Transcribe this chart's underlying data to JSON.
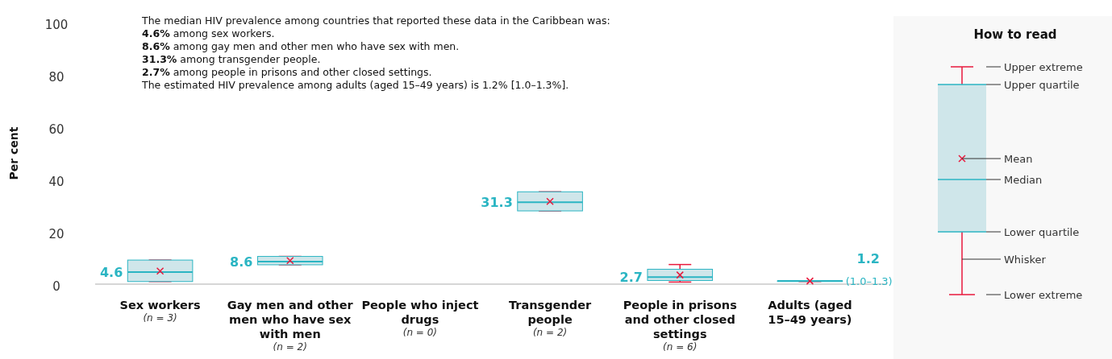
{
  "chart_data": {
    "type": "box",
    "ylabel": "Per cent",
    "ylim": [
      0,
      100
    ],
    "yticks": [
      0,
      20,
      40,
      60,
      80,
      100
    ],
    "grid": false,
    "categories": [
      "Sex workers\n(n = 3)",
      "Gay men and other men who have sex with men\n(n = 2)",
      "People who inject drugs\n(n = 0)",
      "Transgender people\n(n = 2)",
      "People in prisons and other closed settings\n(n = 6)",
      "Adults (aged 15–49 years)"
    ],
    "boxes": [
      {
        "low": 1.0,
        "q1": 1.0,
        "median": 4.6,
        "q3": 9.2,
        "high": 9.2,
        "mean": 5.0
      },
      {
        "low": 7.4,
        "q1": 7.4,
        "median": 8.6,
        "q3": 10.6,
        "high": 10.6,
        "mean": 9.0
      },
      null,
      {
        "low": 28.0,
        "q1": 28.0,
        "median": 31.3,
        "q3": 35.3,
        "high": 35.3,
        "mean": 31.6
      },
      {
        "low": 0.8,
        "q1": 1.4,
        "median": 2.7,
        "q3": 5.7,
        "high": 7.5,
        "mean": 3.5
      },
      {
        "low": 1.0,
        "q1": 1.0,
        "median": 1.2,
        "q3": 1.3,
        "high": 1.3,
        "mean": 1.2
      }
    ],
    "value_labels": [
      "4.6",
      "8.6",
      null,
      "31.3",
      "2.7",
      "1.2"
    ],
    "color": "#2bb5c3",
    "legend_title": "How to read",
    "annotations": [
      "The median HIV prevalence among countries that reported these data in the Caribbean was:\n4.6% among sex workers.\n8.6% among gay men and other men who have sex with men.\n31.3% among transgender people.\n2.7% among people in prisons and other closed settings.\nThe estimated HIV prevalence among adults (aged 15–49 years) is 1.2% [1.0–1.3%].",
      "(1.0–1.3)",
      "Upper extreme",
      "Upper quartile",
      "Mean",
      "Median",
      "Lower quartile",
      "Whisker",
      "Lower extreme"
    ]
  }
}
